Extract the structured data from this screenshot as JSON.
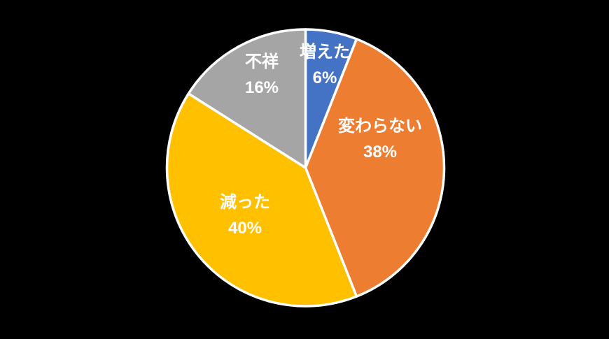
{
  "chart_data": {
    "type": "pie",
    "title": "",
    "background_color": "#000000",
    "stroke_color": "#FFFFFF",
    "label_color": "#FFFFFF",
    "start_angle_deg": 0,
    "direction": "clockwise",
    "legend": "none",
    "slices": [
      {
        "label": "増えた",
        "value": 6,
        "pct_label": "6%",
        "color": "#4472C4"
      },
      {
        "label": "変わらない",
        "value": 38,
        "pct_label": "38%",
        "color": "#ED7D31"
      },
      {
        "label": "減った",
        "value": 40,
        "pct_label": "40%",
        "color": "#FFC000"
      },
      {
        "label": "不祥",
        "value": 16,
        "pct_label": "16%",
        "color": "#A5A5A5"
      }
    ]
  }
}
